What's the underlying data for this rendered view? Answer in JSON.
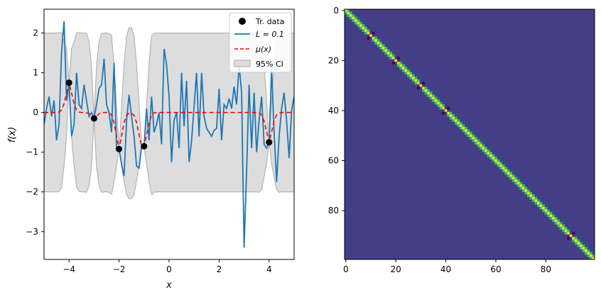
{
  "chart_data": [
    {
      "type": "line",
      "xlabel": "x",
      "ylabel": "f(x)",
      "xlim": [
        -5,
        5
      ],
      "ylim": [
        -3.7,
        2.6
      ],
      "xticks": [
        -4,
        -2,
        0,
        2,
        4
      ],
      "yticks": [
        -3,
        -2,
        -1,
        0,
        1,
        2
      ],
      "xtick_labels": [
        "−4",
        "−2",
        "0",
        "2",
        "4"
      ],
      "ytick_labels": [
        "−3",
        "−2",
        "−1",
        "0",
        "1",
        "2"
      ],
      "grid": false,
      "legend": {
        "placement": "top-right",
        "entries": [
          "Tr. data",
          "L = 0.1",
          "μ(x)",
          "95% CI"
        ]
      },
      "training_data": {
        "name": "Tr. data",
        "color": "#000000",
        "x": [
          -4.0,
          -3.0,
          -2.0,
          -1.0,
          4.0
        ],
        "y": [
          0.75,
          -0.15,
          -0.92,
          -0.85,
          -0.75
        ]
      },
      "sample": {
        "name": "L = 0.1",
        "color": "#1f77b4",
        "x": [
          -5.0,
          -4.9,
          -4.8,
          -4.7,
          -4.6,
          -4.5,
          -4.4,
          -4.3,
          -4.2,
          -4.1,
          -4.0,
          -3.9,
          -3.8,
          -3.7,
          -3.6,
          -3.5,
          -3.4,
          -3.3,
          -3.2,
          -3.1,
          -3.0,
          -2.9,
          -2.8,
          -2.7,
          -2.6,
          -2.5,
          -2.4,
          -2.3,
          -2.2,
          -2.1,
          -2.0,
          -1.9,
          -1.8,
          -1.7,
          -1.6,
          -1.5,
          -1.4,
          -1.3,
          -1.2,
          -1.1,
          -1.0,
          -0.9,
          -0.8,
          -0.7,
          -0.6,
          -0.5,
          -0.4,
          -0.3,
          -0.2,
          -0.1,
          0.0,
          0.1,
          0.2,
          0.3,
          0.4,
          0.5,
          0.6,
          0.7,
          0.8,
          0.9,
          1.0,
          1.1,
          1.2,
          1.3,
          1.4,
          1.5,
          1.6,
          1.7,
          1.8,
          1.9,
          2.0,
          2.1,
          2.2,
          2.3,
          2.4,
          2.5,
          2.6,
          2.7,
          2.8,
          2.9,
          3.0,
          3.1,
          3.2,
          3.3,
          3.4,
          3.5,
          3.6,
          3.7,
          3.8,
          3.9,
          4.0,
          4.1,
          4.2,
          4.3,
          4.4,
          4.5,
          4.6,
          4.7,
          4.8,
          4.9,
          5.0
        ],
        "y": [
          -0.3,
          0.1,
          0.4,
          -0.1,
          0.3,
          -0.7,
          -0.3,
          1.5,
          2.3,
          0.3,
          0.75,
          -0.6,
          -0.3,
          1.0,
          0.2,
          0.1,
          0.7,
          0.3,
          -0.1,
          0.0,
          -0.15,
          0.2,
          0.6,
          0.7,
          1.35,
          0.2,
          0.0,
          -0.5,
          1.25,
          -0.95,
          -0.92,
          -1.3,
          -1.6,
          -0.2,
          0.45,
          -0.1,
          -0.6,
          -1.35,
          -1.4,
          -0.85,
          -0.85,
          0.1,
          -0.7,
          0.4,
          -0.5,
          -0.3,
          0.0,
          -0.8,
          1.6,
          1.2,
          0.4,
          -1.25,
          -0.2,
          0.0,
          -0.9,
          1.0,
          -0.35,
          0.8,
          -1.25,
          -0.7,
          0.15,
          1.0,
          -0.6,
          1.0,
          -0.1,
          -0.4,
          -0.5,
          -0.6,
          -0.45,
          -0.4,
          0.6,
          -0.7,
          0.2,
          0.1,
          0.35,
          0.1,
          0.65,
          0.2,
          1.2,
          0.5,
          -3.4,
          -1.5,
          0.7,
          -0.9,
          0.5,
          -1.0,
          -0.2,
          0.4,
          -0.8,
          -0.9,
          -0.75,
          1.1,
          -0.5,
          -1.75,
          -0.6,
          0.1,
          0.5,
          -0.2,
          -1.15,
          0.05,
          0.4
        ]
      },
      "mean": {
        "name": "μ(x)",
        "color": "#ff0000",
        "x": [
          -5.0,
          -4.5,
          -4.4,
          -4.3,
          -4.2,
          -4.1,
          -4.0,
          -3.9,
          -3.8,
          -3.7,
          -3.6,
          -3.5,
          -3.4,
          -3.3,
          -3.2,
          -3.1,
          -3.0,
          -2.9,
          -2.8,
          -2.7,
          -2.6,
          -2.5,
          -2.4,
          -2.3,
          -2.2,
          -2.1,
          -2.0,
          -1.9,
          -1.8,
          -1.7,
          -1.6,
          -1.5,
          -1.4,
          -1.3,
          -1.2,
          -1.1,
          -1.0,
          -0.9,
          -0.8,
          -0.7,
          -0.6,
          -0.5,
          3.5,
          3.6,
          3.7,
          3.8,
          3.9,
          4.0,
          4.1,
          4.2,
          4.3,
          4.4,
          4.5,
          5.0
        ],
        "y": [
          0.0,
          0.0,
          0.01,
          0.06,
          0.22,
          0.49,
          0.75,
          0.49,
          0.22,
          0.06,
          0.01,
          0.0,
          0.0,
          -0.01,
          -0.03,
          -0.1,
          -0.15,
          -0.1,
          -0.03,
          -0.01,
          0.0,
          0.0,
          -0.01,
          -0.06,
          -0.26,
          -0.6,
          -0.92,
          -0.6,
          -0.26,
          -0.07,
          -0.02,
          -0.02,
          -0.07,
          -0.25,
          -0.56,
          -0.85,
          -0.85,
          -0.56,
          -0.25,
          -0.07,
          -0.01,
          0.0,
          0.0,
          -0.01,
          -0.06,
          -0.22,
          -0.49,
          -0.75,
          -0.49,
          -0.22,
          -0.06,
          -0.01,
          0.0,
          0.0
        ]
      },
      "confidence_band": {
        "name": "95% CI",
        "color": "#dddddd",
        "x": [
          -5.0,
          -4.5,
          -4.4,
          -4.3,
          -4.2,
          -4.1,
          -4.0,
          -3.9,
          -3.8,
          -3.7,
          -3.6,
          -3.5,
          -3.4,
          -3.3,
          -3.2,
          -3.1,
          -3.0,
          -2.9,
          -2.8,
          -2.7,
          -2.6,
          -2.5,
          -2.4,
          -2.3,
          -2.2,
          -2.1,
          -2.0,
          -1.9,
          -1.8,
          -1.7,
          -1.6,
          -1.5,
          -1.4,
          -1.3,
          -1.2,
          -1.1,
          -1.0,
          -0.9,
          -0.8,
          -0.7,
          -0.6,
          -0.5,
          3.5,
          3.6,
          3.7,
          3.8,
          3.9,
          4.0,
          4.1,
          4.2,
          4.3,
          4.4,
          4.5,
          5.0
        ],
        "lower": [
          -2.0,
          -2.0,
          -1.99,
          -1.89,
          -1.34,
          -0.62,
          0.75,
          -0.62,
          -1.34,
          -1.89,
          -1.99,
          -2.0,
          -2.0,
          -2.01,
          -1.84,
          -1.37,
          -0.15,
          -1.37,
          -1.84,
          -2.01,
          -2.0,
          -2.0,
          -2.01,
          -2.06,
          -1.74,
          -1.35,
          -0.92,
          -1.35,
          -1.74,
          -2.07,
          -2.17,
          -2.17,
          -2.07,
          -1.73,
          -1.31,
          -0.85,
          -0.85,
          -1.31,
          -1.73,
          -2.07,
          -2.01,
          -2.0,
          -2.0,
          -2.01,
          -1.95,
          -1.62,
          -1.28,
          -0.75,
          -1.28,
          -1.62,
          -1.95,
          -2.01,
          -2.0,
          -2.0
        ],
        "upper": [
          2.0,
          2.0,
          2.01,
          2.01,
          1.78,
          1.6,
          0.75,
          1.6,
          1.78,
          2.01,
          2.01,
          2.0,
          2.0,
          1.99,
          1.78,
          1.17,
          -0.15,
          1.17,
          1.78,
          1.99,
          2.0,
          2.0,
          1.99,
          1.94,
          1.22,
          0.15,
          -0.92,
          0.15,
          1.22,
          1.93,
          2.13,
          2.13,
          1.93,
          1.23,
          0.19,
          -0.85,
          -0.85,
          0.19,
          1.23,
          1.93,
          1.99,
          2.0,
          2.0,
          1.99,
          1.83,
          1.18,
          0.3,
          -0.75,
          0.3,
          1.18,
          1.83,
          1.99,
          2.0,
          2.0
        ]
      }
    },
    {
      "type": "heatmap",
      "size": 100,
      "xlim": [
        0,
        99
      ],
      "ylim": [
        99,
        0
      ],
      "xticks": [
        0,
        20,
        40,
        60,
        80
      ],
      "yticks": [
        0,
        20,
        40,
        60,
        80
      ],
      "xtick_labels": [
        "0",
        "20",
        "40",
        "60",
        "80"
      ],
      "ytick_labels": [
        "0",
        "20",
        "40",
        "60",
        "80"
      ],
      "colors": {
        "background": "#433e85",
        "diagonal": "#e4e419",
        "near_diagonal": "#35b779",
        "negative": "#440154"
      },
      "band_values": [
        {
          "offset": 0,
          "value": 1.0
        },
        {
          "offset": 1,
          "value": 0.6
        }
      ],
      "training_indices": [
        10,
        20,
        30,
        40,
        90
      ]
    }
  ]
}
